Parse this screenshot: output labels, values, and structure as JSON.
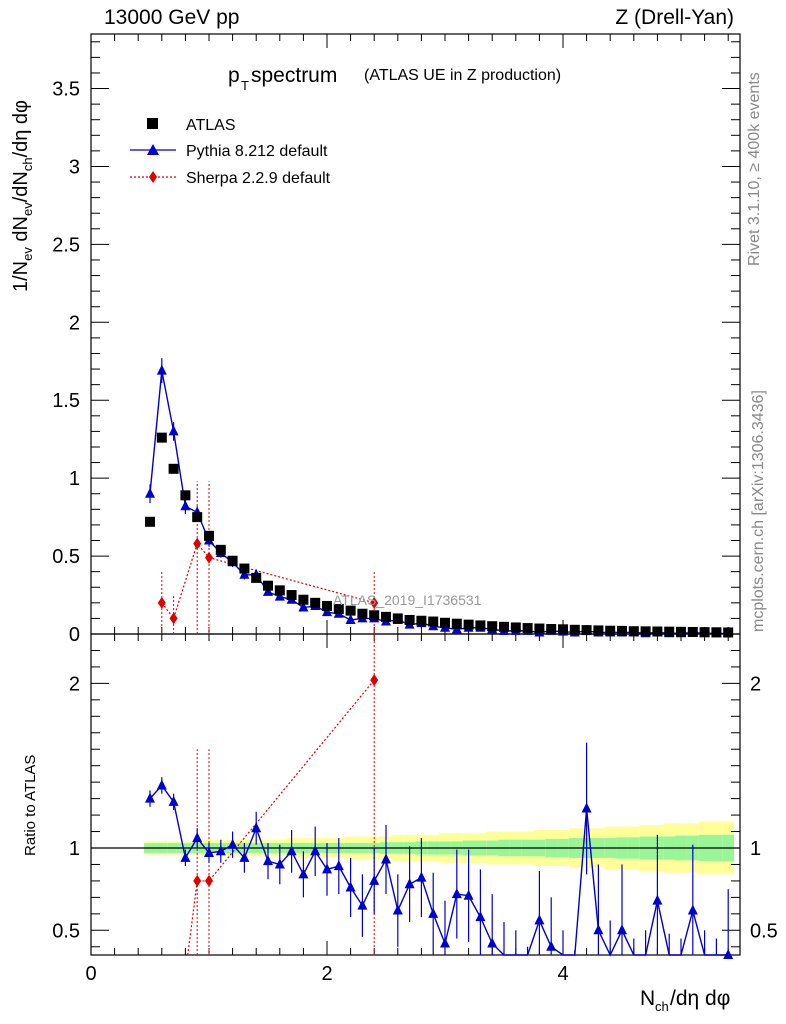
{
  "header": {
    "left": "13000 GeV pp",
    "right": "Z (Drell-Yan)"
  },
  "side_labels": {
    "rivet": "Rivet 3.1.10, ≥ 400k events",
    "mcplots": "mcplots.cern.ch [arXiv:1306.3436]"
  },
  "chart_data": {
    "type": "scatter",
    "title_main": "p",
    "title_sub": "T",
    "title_rest": " spectrum",
    "title_paren": "(ATLAS UE in Z production)",
    "watermark": "ATLAS_2019_I1736531",
    "xlabel": "N",
    "xlabel_sub": "ch",
    "xlabel_rest": "/dη dφ",
    "ylabel_main": "1/Nₑᵥ dNₑᵥ/dNᶜʰ/dη dφ",
    "ylabel_ratio": "Ratio to ATLAS",
    "xlim": [
      0,
      5.5
    ],
    "ylim_main": [
      0,
      3.85
    ],
    "ylim_ratio": [
      0.35,
      2.3
    ],
    "xticks": [
      0,
      2,
      4
    ],
    "yticks_main": [
      0,
      0.5,
      1,
      1.5,
      2,
      2.5,
      3,
      3.5
    ],
    "yticks_main_labels": [
      "0",
      "0.5",
      "1",
      "1.5",
      "2",
      "2.5",
      "3",
      "3.5"
    ],
    "yticks_ratio": [
      0.5,
      1,
      2
    ],
    "yticks_ratio_labels": [
      "0.5",
      "1",
      "2"
    ],
    "legend": [
      "ATLAS",
      "Pythia 8.212 default",
      "Sherpa 2.2.9 default"
    ],
    "x": [
      0.5,
      0.6,
      0.7,
      0.8,
      0.9,
      1.0,
      1.1,
      1.2,
      1.3,
      1.4,
      1.5,
      1.6,
      1.7,
      1.8,
      1.9,
      2.0,
      2.1,
      2.2,
      2.3,
      2.4,
      2.5,
      2.6,
      2.7,
      2.8,
      2.9,
      3.0,
      3.1,
      3.2,
      3.3,
      3.4,
      3.5,
      3.6,
      3.7,
      3.8,
      3.9,
      4.0,
      4.1,
      4.2,
      4.3,
      4.4,
      4.5,
      4.6,
      4.7,
      4.8,
      4.9,
      5.0,
      5.1,
      5.2,
      5.3,
      5.4
    ],
    "atlas": [
      0.72,
      1.26,
      1.06,
      0.89,
      0.75,
      0.63,
      0.54,
      0.47,
      0.42,
      0.36,
      0.31,
      0.28,
      0.25,
      0.22,
      0.2,
      0.18,
      0.16,
      0.15,
      0.13,
      0.12,
      0.11,
      0.1,
      0.09,
      0.085,
      0.08,
      0.072,
      0.066,
      0.06,
      0.055,
      0.05,
      0.046,
      0.042,
      0.038,
      0.035,
      0.032,
      0.03,
      0.027,
      0.025,
      0.023,
      0.021,
      0.02,
      0.018,
      0.017,
      0.016,
      0.015,
      0.014,
      0.013,
      0.012,
      0.011,
      0.01
    ],
    "pythia": [
      0.9,
      1.69,
      1.3,
      0.82,
      0.78,
      0.6,
      0.52,
      0.46,
      0.38,
      0.38,
      0.27,
      0.24,
      0.22,
      0.17,
      0.18,
      0.14,
      0.13,
      0.09,
      0.1,
      0.1,
      0.08,
      0.09,
      0.06,
      0.07,
      0.05,
      0.04,
      0.03,
      0.04,
      0.04,
      0.03,
      0.02,
      0.02,
      0.02,
      0.01,
      0.02,
      0.015,
      0.01,
      0.02,
      0.01,
      0.01,
      0.01,
      0.01,
      0.005,
      0.01,
      0.005,
      0.005,
      0.008,
      0.005,
      0.004,
      0.003
    ],
    "pythia_err": [
      0.06,
      0.08,
      0.06,
      0.05,
      0.04,
      0.04,
      0.03,
      0.03,
      0.03,
      0.03,
      0.02,
      0.02,
      0.02,
      0.02,
      0.02,
      0.02,
      0.02,
      0.015,
      0.015,
      0.015,
      0.01,
      0.01,
      0.01,
      0.01,
      0.01,
      0.01,
      0.01,
      0.01,
      0.01,
      0.01,
      0.01,
      0.01,
      0.01,
      0.01,
      0.01,
      0.01,
      0.01,
      0.01,
      0.01,
      0.01,
      0.01,
      0.01,
      0.01,
      0.01,
      0.01,
      0.01,
      0.01,
      0.01,
      0.01,
      0.01
    ],
    "sherpa_x": [
      0.6,
      0.7,
      0.9,
      1.0,
      2.4
    ],
    "sherpa": [
      0.2,
      0.1,
      0.58,
      0.49,
      0.2
    ],
    "sherpa_err_lo": [
      0.2,
      0.1,
      0.58,
      0.49,
      0.2
    ],
    "sherpa_err_hi": [
      0.2,
      0.15,
      0.4,
      0.49,
      0.2
    ],
    "ratio_pythia": [
      1.3,
      1.38,
      1.28,
      0.94,
      1.06,
      0.97,
      0.98,
      1.02,
      0.94,
      1.12,
      0.92,
      0.9,
      0.98,
      0.84,
      0.98,
      0.87,
      0.89,
      0.76,
      0.65,
      0.8,
      0.93,
      0.62,
      0.78,
      0.82,
      0.6,
      0.42,
      0.72,
      0.71,
      0.58,
      0.42,
      0.25,
      0.2,
      0.1,
      0.56,
      0.4,
      0.2,
      0.08,
      1.24,
      0.5,
      0.16,
      0.5,
      0.05,
      0.1,
      0.68,
      0.08,
      0.05,
      0.62,
      0.1,
      0.05,
      0.35
    ],
    "ratio_pythia_err": [
      0.05,
      0.05,
      0.05,
      0.05,
      0.06,
      0.06,
      0.07,
      0.08,
      0.09,
      0.1,
      0.11,
      0.12,
      0.13,
      0.14,
      0.15,
      0.16,
      0.17,
      0.18,
      0.19,
      0.2,
      0.21,
      0.22,
      0.23,
      0.24,
      0.25,
      0.26,
      0.27,
      0.28,
      0.29,
      0.3,
      0.3,
      0.3,
      0.3,
      0.3,
      0.3,
      0.3,
      0.3,
      0.4,
      0.4,
      0.4,
      0.4,
      0.4,
      0.4,
      0.4,
      0.4,
      0.4,
      0.4,
      0.4,
      0.4,
      0.4
    ],
    "ratio_sherpa_x": [
      0.9,
      1.0,
      2.4
    ],
    "ratio_sherpa": [
      0.8,
      0.8,
      2.02
    ],
    "band_inner": [
      0.03,
      0.03,
      0.03,
      0.03,
      0.03,
      0.03,
      0.03,
      0.03,
      0.03,
      0.03,
      0.03,
      0.03,
      0.03,
      0.03,
      0.03,
      0.03,
      0.03,
      0.03,
      0.03,
      0.03,
      0.035,
      0.035,
      0.035,
      0.04,
      0.04,
      0.04,
      0.04,
      0.045,
      0.045,
      0.045,
      0.05,
      0.05,
      0.05,
      0.05,
      0.055,
      0.055,
      0.06,
      0.06,
      0.06,
      0.06,
      0.065,
      0.065,
      0.07,
      0.07,
      0.07,
      0.075,
      0.075,
      0.08,
      0.08,
      0.08
    ],
    "band_outer": [
      0.04,
      0.04,
      0.04,
      0.04,
      0.04,
      0.05,
      0.05,
      0.05,
      0.05,
      0.05,
      0.05,
      0.05,
      0.06,
      0.06,
      0.06,
      0.06,
      0.06,
      0.07,
      0.07,
      0.07,
      0.07,
      0.08,
      0.08,
      0.08,
      0.08,
      0.09,
      0.09,
      0.09,
      0.09,
      0.1,
      0.1,
      0.1,
      0.1,
      0.11,
      0.11,
      0.11,
      0.12,
      0.12,
      0.12,
      0.13,
      0.13,
      0.13,
      0.14,
      0.14,
      0.15,
      0.15,
      0.15,
      0.16,
      0.16,
      0.16
    ],
    "colors": {
      "atlas": "#000000",
      "pythia": "#0000cc",
      "sherpa": "#e00000",
      "band_inner": "#98f598",
      "band_outer": "#ffff99"
    }
  }
}
